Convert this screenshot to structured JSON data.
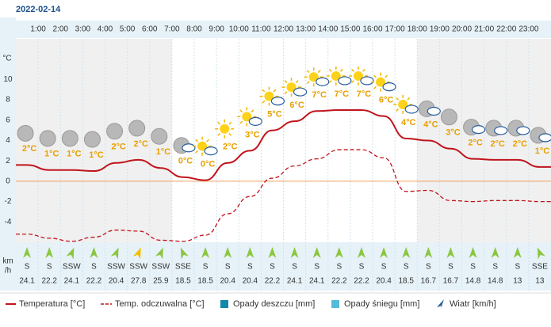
{
  "chart_data": {
    "type": "line",
    "date": "2022-02-14",
    "y_unit": "°C",
    "wind_unit": [
      "km",
      "/h"
    ],
    "hour_labels": [
      "1:00",
      "2:00",
      "3:00",
      "4:00",
      "5:00",
      "6:00",
      "7:00",
      "8:00",
      "9:00",
      "10:00",
      "11:00",
      "12:00",
      "13:00",
      "14:00",
      "15:00",
      "16:00",
      "17:00",
      "18:00",
      "19:00",
      "20:00",
      "21:00",
      "22:00",
      "23:00"
    ],
    "ylim": [
      -6,
      14
    ],
    "yticks": [
      -4,
      -2,
      0,
      2,
      4,
      6,
      8,
      10
    ],
    "series": [
      {
        "name": "Temperatura [°C]",
        "color": "#c0141c",
        "values": [
          1.6,
          1.1,
          1.1,
          1.0,
          1.8,
          2.1,
          1.3,
          0.4,
          0.1,
          1.8,
          3.0,
          5.0,
          5.9,
          6.9,
          7.0,
          7.0,
          6.4,
          4.2,
          4.0,
          3.2,
          2.2,
          2.1,
          2.1,
          1.4
        ],
        "value_labels": [
          "2°C",
          "1°C",
          "1°C",
          "1°C",
          "2°C",
          "2°C",
          "1°C",
          "0°C",
          "0°C",
          "2°C",
          "3°C",
          "5°C",
          "6°C",
          "7°C",
          "7°C",
          "7°C",
          "6°C",
          "4°C",
          "4°C",
          "3°C",
          "2°C",
          "2°C",
          "2°C",
          "1°C"
        ]
      },
      {
        "name": "Temp. odczuwalna [°C]",
        "color": "#c0141c",
        "dashed": true,
        "values": [
          -5.2,
          -5.6,
          -5.9,
          -5.5,
          -4.8,
          -4.9,
          -5.8,
          -5.9,
          -5.3,
          -3.2,
          -1.5,
          0.3,
          1.5,
          2.2,
          3.1,
          3.1,
          2.3,
          -1.0,
          -0.9,
          -1.9,
          -2.0,
          -1.9,
          -1.9,
          -2.0
        ]
      }
    ],
    "legend_extra": [
      {
        "name": "Opady deszczu [mm]",
        "color": "#1188aa"
      },
      {
        "name": "Opady śniegu [mm]",
        "color": "#55bbdd"
      },
      {
        "name": "Wiatr [km/h]"
      }
    ],
    "wind_dir": [
      "S",
      "S",
      "SSW",
      "S",
      "SSW",
      "SSW",
      "SSW",
      "SSE",
      "S",
      "S",
      "S",
      "S",
      "S",
      "S",
      "S",
      "S",
      "S",
      "S",
      "S",
      "S",
      "S",
      "S",
      "S",
      "SSE"
    ],
    "wind_speed": [
      24.1,
      22.2,
      24.1,
      22.2,
      20.4,
      27.8,
      25.9,
      18.5,
      18.5,
      20.4,
      20.4,
      22.2,
      24.1,
      24.1,
      22.2,
      22.2,
      20.4,
      18.5,
      16.7,
      16.7,
      14.8,
      14.8,
      13,
      13
    ]
  }
}
